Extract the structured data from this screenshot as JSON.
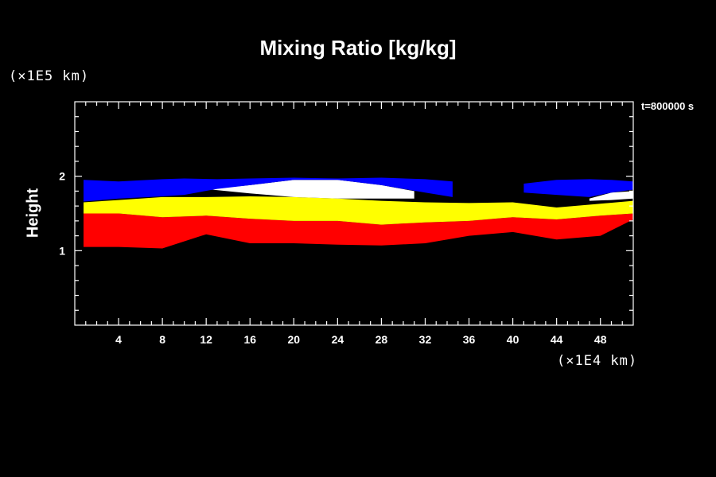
{
  "chart_data": {
    "type": "area",
    "title": "Mixing Ratio [kg/kg]",
    "ylabel": "Height",
    "x_unit": "(×1E4 km)",
    "y_unit": "(×1E5 km)",
    "annotation": "t=800000 s",
    "xlim": [
      0,
      51
    ],
    "ylim": [
      0,
      3
    ],
    "x_ticks": [
      4,
      8,
      12,
      16,
      20,
      24,
      28,
      32,
      36,
      40,
      44,
      48
    ],
    "y_ticks": [
      1,
      2
    ],
    "background": "#000000",
    "series": [
      {
        "color": "#ff0000",
        "x": [
          0.8,
          4,
          8,
          12,
          16,
          20,
          24,
          28,
          32,
          36,
          40,
          44,
          48,
          51
        ],
        "bottom": [
          1.05,
          1.05,
          1.03,
          1.22,
          1.1,
          1.1,
          1.08,
          1.07,
          1.1,
          1.2,
          1.25,
          1.15,
          1.2,
          1.42
        ],
        "top": [
          1.5,
          1.5,
          1.45,
          1.47,
          1.43,
          1.4,
          1.4,
          1.35,
          1.38,
          1.4,
          1.45,
          1.42,
          1.47,
          1.5
        ]
      },
      {
        "color": "#ffff00",
        "x": [
          0.8,
          4,
          8,
          12,
          16,
          20,
          24,
          28,
          32,
          36,
          40,
          44,
          48,
          51
        ],
        "bottom": [
          1.5,
          1.5,
          1.45,
          1.47,
          1.43,
          1.4,
          1.4,
          1.35,
          1.38,
          1.4,
          1.45,
          1.42,
          1.47,
          1.5
        ],
        "top": [
          1.65,
          1.68,
          1.72,
          1.72,
          1.73,
          1.72,
          1.7,
          1.67,
          1.65,
          1.64,
          1.65,
          1.58,
          1.63,
          1.67
        ]
      },
      {
        "color": "#ffffff",
        "x": [
          12.5,
          16,
          20,
          24,
          28,
          31
        ],
        "bottom": [
          1.82,
          1.77,
          1.72,
          1.7,
          1.7,
          1.7
        ],
        "top": [
          1.83,
          1.88,
          1.95,
          1.95,
          1.88,
          1.8
        ]
      },
      {
        "color": "#ffffff",
        "x": [
          47,
          49,
          51
        ],
        "bottom": [
          1.67,
          1.68,
          1.7
        ],
        "top": [
          1.7,
          1.78,
          1.8
        ]
      },
      {
        "color": "#0000ff",
        "x": [
          0.8,
          4,
          8,
          10,
          13,
          16,
          20,
          24,
          28,
          32,
          34.5
        ],
        "bottom": [
          1.66,
          1.7,
          1.73,
          1.75,
          1.83,
          1.88,
          1.95,
          1.95,
          1.88,
          1.78,
          1.72
        ],
        "top": [
          1.95,
          1.93,
          1.96,
          1.97,
          1.96,
          1.97,
          1.98,
          1.97,
          1.98,
          1.96,
          1.93
        ]
      },
      {
        "color": "#0000ff",
        "x": [
          41,
          44,
          47,
          49,
          51
        ],
        "bottom": [
          1.78,
          1.75,
          1.72,
          1.78,
          1.82
        ],
        "top": [
          1.9,
          1.95,
          1.96,
          1.95,
          1.93
        ]
      }
    ]
  }
}
